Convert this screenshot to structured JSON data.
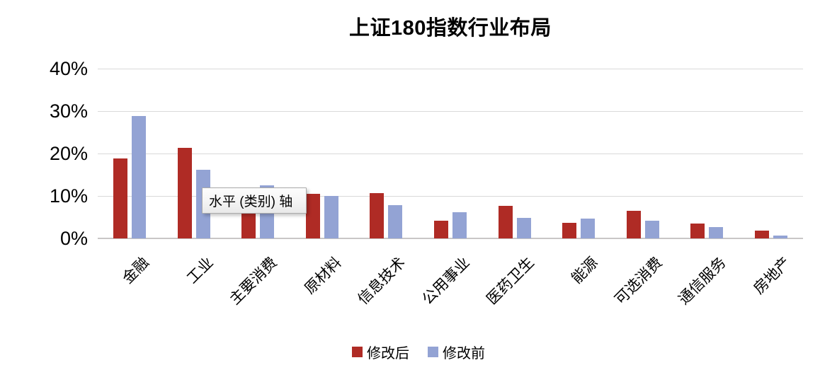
{
  "title": "上证180指数行业布局",
  "tooltip": {
    "text": "水平 (类别) 轴"
  },
  "legend": {
    "after_label": "修改后",
    "before_label": "修改前"
  },
  "colors": {
    "series_after": "#af2b25",
    "series_before": "#93a3d4",
    "gridline": "#d9d9d9",
    "axis_line": "#c9c6c6",
    "background": "#ffffff",
    "text": "#000000"
  },
  "chart_data": {
    "type": "bar",
    "title": "上证180指数行业布局",
    "categories": [
      "金融",
      "工业",
      "主要消费",
      "原材料",
      "信息技术",
      "公用事业",
      "医药卫生",
      "能源",
      "可选消费",
      "通信服务",
      "房地产"
    ],
    "series": [
      {
        "name": "修改后",
        "color": "#af2b25",
        "values": [
          18.8,
          21.4,
          9.0,
          10.5,
          10.6,
          4.2,
          7.6,
          3.7,
          6.5,
          3.5,
          1.8
        ]
      },
      {
        "name": "修改前",
        "color": "#93a3d4",
        "values": [
          28.8,
          16.2,
          12.5,
          10.0,
          7.9,
          6.1,
          4.8,
          4.6,
          4.2,
          2.6,
          0.7
        ]
      }
    ],
    "xlabel": "",
    "ylabel": "",
    "ylim": [
      0,
      40
    ],
    "yticks": [
      0,
      10,
      20,
      30,
      40
    ],
    "ytick_suffix": "%",
    "grid": true,
    "legend_position": "bottom",
    "x_tick_label_rotation_deg": 45,
    "annotations": [
      {
        "type": "tooltip",
        "text": "水平 (类别) 轴",
        "note": "hover tooltip over category axis, overlaps 主要消费 bars"
      }
    ]
  }
}
